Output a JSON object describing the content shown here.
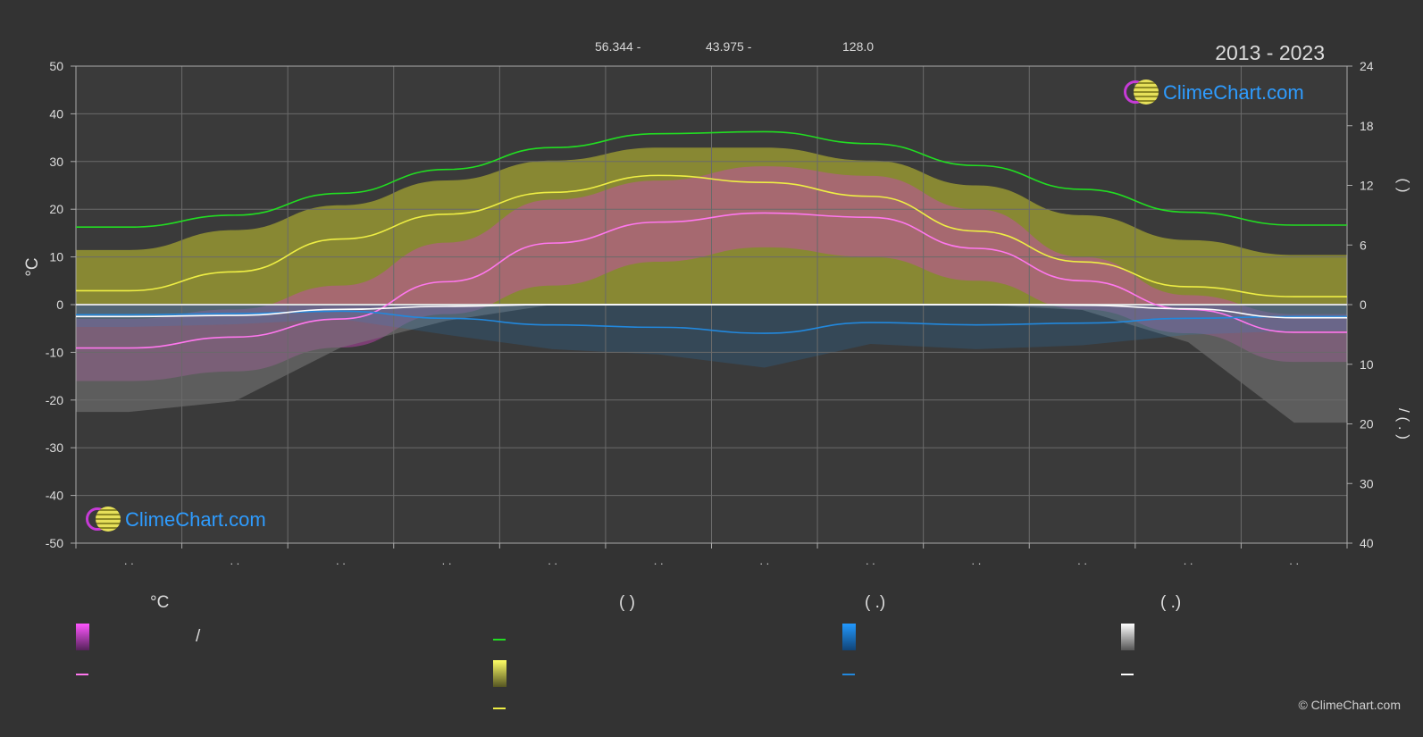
{
  "header": {
    "latitude": "56.344 -",
    "longitude": "43.975 -",
    "elevation": "128.0",
    "years": "2013 - 2023"
  },
  "logo_text": "ClimeChart.com",
  "copyright": "© ClimeChart.com",
  "legend": {
    "temp_header": "°C",
    "daylight_header": "(          )",
    "precip_header": "(    .)",
    "snow_header": "(    .)",
    "temp_range_slash": "/"
  },
  "colors": {
    "background": "#333333",
    "daylight": "#22dd22",
    "sunshine": "#eeee44",
    "sunshine_area": "#a3a331",
    "temp_area": "#cc44bb",
    "temp_mean": "#ff77ee",
    "precip": "#2288dd",
    "snow": "#ffffff",
    "snow_area": "#7a7a7a"
  },
  "chart_data": {
    "type": "area",
    "x_tick_labels": [
      ". .",
      ". .",
      ". .",
      ". .",
      ". .",
      ". .",
      ". .",
      ". .",
      ". .",
      ". .",
      ". .",
      ". ."
    ],
    "y_left": {
      "label": "°C",
      "range": [
        -50,
        50
      ],
      "ticks": [
        50,
        40,
        30,
        20,
        10,
        0,
        -10,
        -20,
        -30,
        -40,
        -50
      ]
    },
    "y_right_top": {
      "label": "(    )",
      "range": [
        0,
        24
      ],
      "ticks": [
        24,
        18,
        12,
        6,
        0
      ]
    },
    "y_right_bottom": {
      "label": "/  ( . )",
      "range": [
        0,
        40
      ],
      "ticks": [
        10,
        20,
        30,
        40
      ]
    },
    "series": [
      {
        "key": "daylight",
        "axis": "hours",
        "values": [
          7.8,
          9.0,
          11.2,
          13.6,
          15.8,
          17.2,
          17.4,
          16.2,
          14.0,
          11.6,
          9.3,
          8.0
        ]
      },
      {
        "key": "sunshine",
        "axis": "hours",
        "values": [
          1.4,
          3.3,
          6.6,
          9.1,
          11.3,
          13.0,
          12.3,
          10.9,
          7.4,
          4.3,
          1.8,
          0.8
        ]
      },
      {
        "key": "sunshine_area_top",
        "axis": "hours",
        "values": [
          5.5,
          7.5,
          10.0,
          12.5,
          14.5,
          15.8,
          15.8,
          14.5,
          12.0,
          9.0,
          6.5,
          5.0
        ]
      },
      {
        "key": "temp_mean",
        "axis": "celsius",
        "values": [
          -9.1,
          -6.8,
          -3.0,
          4.8,
          12.9,
          17.3,
          19.2,
          18.3,
          11.8,
          5.0,
          -1.0,
          -5.8
        ]
      },
      {
        "key": "temp_max_area",
        "axis": "celsius",
        "values": [
          -3,
          -1,
          4,
          13,
          22,
          26,
          29,
          27,
          20,
          10,
          2,
          -2
        ]
      },
      {
        "key": "temp_min_area",
        "axis": "celsius",
        "values": [
          -16,
          -14,
          -9,
          -2,
          4,
          9,
          12,
          10,
          5,
          -1,
          -6,
          -12
        ]
      },
      {
        "key": "precip",
        "axis": "mm",
        "values": [
          1.7,
          1.5,
          1.1,
          2.3,
          3.4,
          3.8,
          4.8,
          3.0,
          3.4,
          3.1,
          2.3,
          2.0
        ]
      },
      {
        "key": "snow",
        "axis": "mm",
        "values": [
          2.0,
          1.8,
          0.8,
          0.3,
          0.0,
          0.0,
          0.0,
          0.0,
          0.0,
          0.1,
          0.7,
          2.2
        ]
      }
    ],
    "grid": true
  }
}
